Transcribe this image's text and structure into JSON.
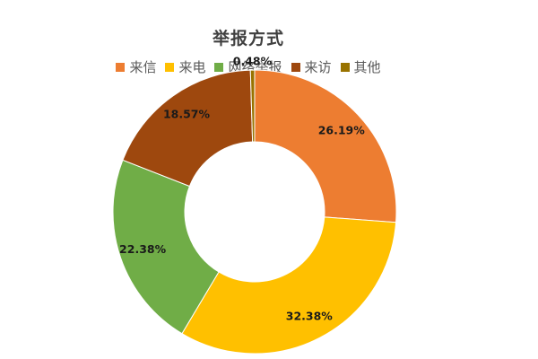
{
  "chart_data": {
    "type": "pie",
    "title": "举报方式",
    "categories": [
      "来信",
      "来电",
      "网络举报",
      "来访",
      "其他"
    ],
    "values": [
      26.19,
      32.38,
      22.38,
      18.57,
      0.48
    ],
    "labels": [
      "26.19%",
      "32.38%",
      "22.38%",
      "18.57%",
      "0.48%"
    ],
    "colors": [
      "#ED7D31",
      "#FFC000",
      "#70AD47",
      "#9E480E",
      "#997300"
    ],
    "donut": true,
    "legend": "top"
  }
}
